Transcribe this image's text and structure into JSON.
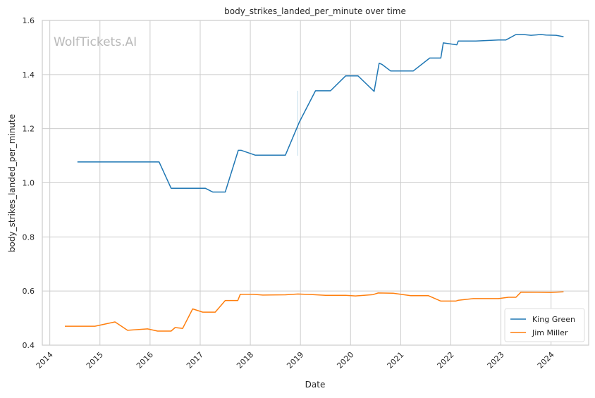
{
  "chart_data": {
    "type": "line",
    "title": "body_strikes_landed_per_minute over time",
    "xlabel": "Date",
    "ylabel": "body_strikes_landed_per_minute",
    "watermark": "WolfTickets.AI",
    "xlim": [
      2013.85,
      2024.75
    ],
    "ylim": [
      0.4,
      1.6
    ],
    "x_ticks": [
      2014,
      2015,
      2016,
      2017,
      2018,
      2019,
      2020,
      2021,
      2022,
      2023,
      2024
    ],
    "x_tick_labels": [
      "2014",
      "2015",
      "2016",
      "2017",
      "2018",
      "2019",
      "2020",
      "2021",
      "2022",
      "2023",
      "2024"
    ],
    "y_ticks": [
      0.4,
      0.6,
      0.8,
      1.0,
      1.2,
      1.4,
      1.6
    ],
    "y_tick_labels": [
      "0.4",
      "0.6",
      "0.8",
      "1.0",
      "1.2",
      "1.4",
      "1.6"
    ],
    "grid": true,
    "legend_position": "lower-right",
    "series": [
      {
        "name": "King Green",
        "color": "#1f77b4",
        "x": [
          2014.55,
          2016.18,
          2016.42,
          2017.1,
          2017.25,
          2017.5,
          2017.76,
          2017.82,
          2018.1,
          2018.7,
          2018.98,
          2019.3,
          2019.6,
          2019.9,
          2020.15,
          2020.47,
          2020.57,
          2020.63,
          2020.8,
          2021.25,
          2021.58,
          2021.8,
          2021.85,
          2022.12,
          2022.15,
          2022.5,
          2022.95,
          2023.1,
          2023.3,
          2023.45,
          2023.6,
          2023.8,
          2023.9,
          2024.1,
          2024.25
        ],
        "values": [
          1.077,
          1.077,
          0.98,
          0.98,
          0.966,
          0.966,
          1.12,
          1.12,
          1.102,
          1.102,
          1.225,
          1.34,
          1.34,
          1.395,
          1.395,
          1.338,
          1.442,
          1.437,
          1.413,
          1.413,
          1.461,
          1.461,
          1.517,
          1.51,
          1.524,
          1.524,
          1.528,
          1.528,
          1.548,
          1.548,
          1.545,
          1.548,
          1.546,
          1.545,
          1.54
        ]
      },
      {
        "name": "Jim Miller",
        "color": "#ff7f0e",
        "x": [
          2014.3,
          2014.9,
          2015.3,
          2015.55,
          2015.95,
          2016.15,
          2016.42,
          2016.5,
          2016.65,
          2016.85,
          2017.05,
          2017.3,
          2017.5,
          2017.75,
          2017.8,
          2018.05,
          2018.25,
          2018.7,
          2018.95,
          2019.25,
          2019.5,
          2019.9,
          2020.1,
          2020.45,
          2020.55,
          2020.85,
          2021.2,
          2021.55,
          2021.8,
          2022.1,
          2022.15,
          2022.45,
          2022.95,
          2023.15,
          2023.3,
          2023.4,
          2024.0,
          2024.25
        ],
        "values": [
          0.47,
          0.47,
          0.486,
          0.455,
          0.46,
          0.452,
          0.452,
          0.465,
          0.462,
          0.534,
          0.522,
          0.522,
          0.565,
          0.565,
          0.588,
          0.588,
          0.585,
          0.586,
          0.589,
          0.587,
          0.584,
          0.584,
          0.582,
          0.587,
          0.593,
          0.592,
          0.583,
          0.583,
          0.563,
          0.563,
          0.566,
          0.572,
          0.572,
          0.577,
          0.577,
          0.596,
          0.595,
          0.597
        ]
      }
    ]
  }
}
